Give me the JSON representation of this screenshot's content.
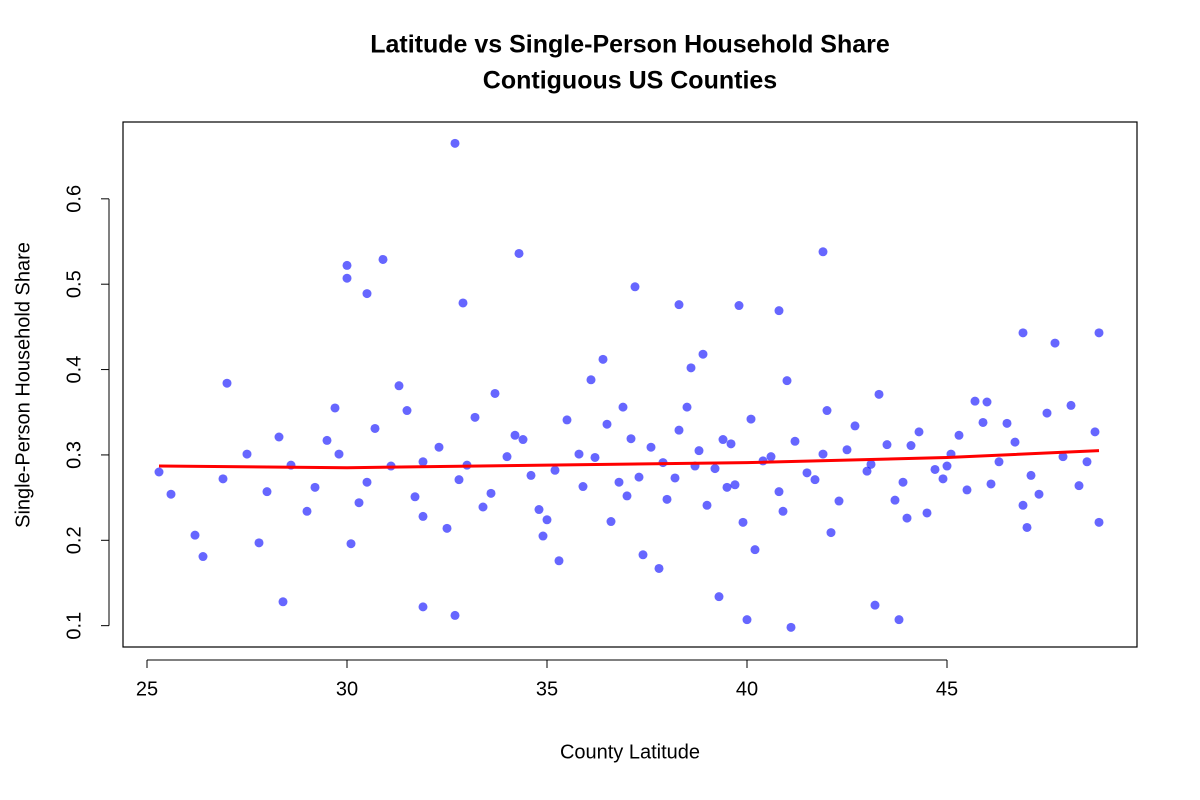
{
  "chart_data": {
    "type": "scatter",
    "title": "Latitude vs Single-Person Household Share",
    "subtitle": "Contiguous US Counties",
    "x_label": "County Latitude",
    "y_label": "Single-Person Household Share",
    "xlim": [
      24.4,
      49.75
    ],
    "ylim": [
      0.075,
      0.69
    ],
    "xticks": [
      25,
      30,
      35,
      40,
      45
    ],
    "yticks": [
      0.1,
      0.2,
      0.3,
      0.4,
      0.5,
      0.6
    ],
    "grid": false,
    "points": {
      "color": "#0000ff",
      "alpha": 0.6,
      "x": [
        29.2,
        29.8,
        30.3,
        30.7,
        31.1,
        31.5,
        31.9,
        32.3,
        32.8,
        33.2,
        33.6,
        34.0,
        34.4,
        34.8,
        35.2,
        35.5,
        35.9,
        36.2,
        36.6,
        36.9,
        37.3,
        37.6,
        38.0,
        38.3,
        38.7,
        39.0,
        39.4,
        39.7,
        40.1,
        40.4,
        40.8,
        41.2,
        41.5,
        41.9,
        42.3,
        42.7,
        43.1,
        43.5,
        43.9,
        44.3,
        44.7,
        45.1,
        45.5,
        45.9,
        46.3,
        46.7,
        47.1,
        47.5,
        47.9,
        48.3,
        48.7,
        30.1,
        31.3,
        32.5,
        33.7,
        34.9,
        36.1,
        37.4,
        38.6,
        39.9,
        41.0,
        42.1,
        43.3,
        44.5,
        45.7,
        46.9,
        48.1,
        35.3,
        36.4,
        37.8,
        38.9,
        40.2,
        27.5,
        28.0,
        28.6,
        29.0,
        29.5,
        26.9,
        27.8,
        28.3,
        29.7,
        31.7,
        33.0,
        34.6,
        35.8,
        36.8,
        37.1,
        37.9,
        38.2,
        38.8,
        39.2,
        39.5,
        40.6,
        41.7,
        42.5,
        43.7,
        44.1,
        44.9,
        45.3,
        46.1,
        46.5,
        47.3,
        48.5,
        48.8,
        30.5,
        31.9,
        33.4,
        34.2,
        35.0,
        36.5,
        37.0,
        38.5,
        39.6,
        40.9,
        42.0,
        43.0,
        44.0,
        45.0,
        46.0,
        47.0,
        32.7,
        34.3,
        41.9,
        30.9,
        30.0,
        30.0,
        30.5,
        32.9,
        37.2,
        39.8,
        38.3,
        40.8,
        41.1,
        40.0,
        43.8,
        32.7,
        28.4,
        31.9,
        39.3,
        43.2,
        25.3,
        25.6,
        27.0,
        26.2,
        26.4,
        48.8,
        46.9,
        47.7
      ],
      "y": [
        0.262,
        0.301,
        0.244,
        0.331,
        0.287,
        0.352,
        0.228,
        0.309,
        0.271,
        0.344,
        0.255,
        0.298,
        0.318,
        0.236,
        0.282,
        0.341,
        0.263,
        0.297,
        0.222,
        0.356,
        0.274,
        0.309,
        0.248,
        0.329,
        0.287,
        0.241,
        0.318,
        0.265,
        0.342,
        0.293,
        0.257,
        0.316,
        0.279,
        0.301,
        0.246,
        0.334,
        0.289,
        0.312,
        0.268,
        0.327,
        0.283,
        0.301,
        0.259,
        0.338,
        0.292,
        0.315,
        0.276,
        0.349,
        0.298,
        0.264,
        0.327,
        0.196,
        0.381,
        0.214,
        0.372,
        0.205,
        0.388,
        0.183,
        0.402,
        0.221,
        0.387,
        0.209,
        0.371,
        0.232,
        0.363,
        0.241,
        0.358,
        0.176,
        0.412,
        0.167,
        0.418,
        0.189,
        0.301,
        0.257,
        0.288,
        0.234,
        0.317,
        0.272,
        0.197,
        0.321,
        0.355,
        0.251,
        0.288,
        0.276,
        0.301,
        0.268,
        0.319,
        0.291,
        0.273,
        0.305,
        0.284,
        0.262,
        0.298,
        0.271,
        0.306,
        0.247,
        0.311,
        0.272,
        0.323,
        0.266,
        0.337,
        0.254,
        0.292,
        0.221,
        0.268,
        0.292,
        0.239,
        0.323,
        0.224,
        0.336,
        0.252,
        0.356,
        0.313,
        0.234,
        0.352,
        0.281,
        0.226,
        0.287,
        0.362,
        0.215,
        0.665,
        0.536,
        0.538,
        0.529,
        0.522,
        0.507,
        0.489,
        0.478,
        0.497,
        0.475,
        0.476,
        0.469,
        0.098,
        0.107,
        0.107,
        0.112,
        0.128,
        0.122,
        0.134,
        0.124,
        0.28,
        0.254,
        0.384,
        0.206,
        0.181,
        0.443,
        0.443,
        0.431
      ]
    },
    "fit": {
      "color": "#ff0000",
      "x": [
        25.3,
        30,
        35,
        40,
        45,
        48.8
      ],
      "y": [
        0.287,
        0.285,
        0.288,
        0.291,
        0.297,
        0.305
      ]
    }
  }
}
